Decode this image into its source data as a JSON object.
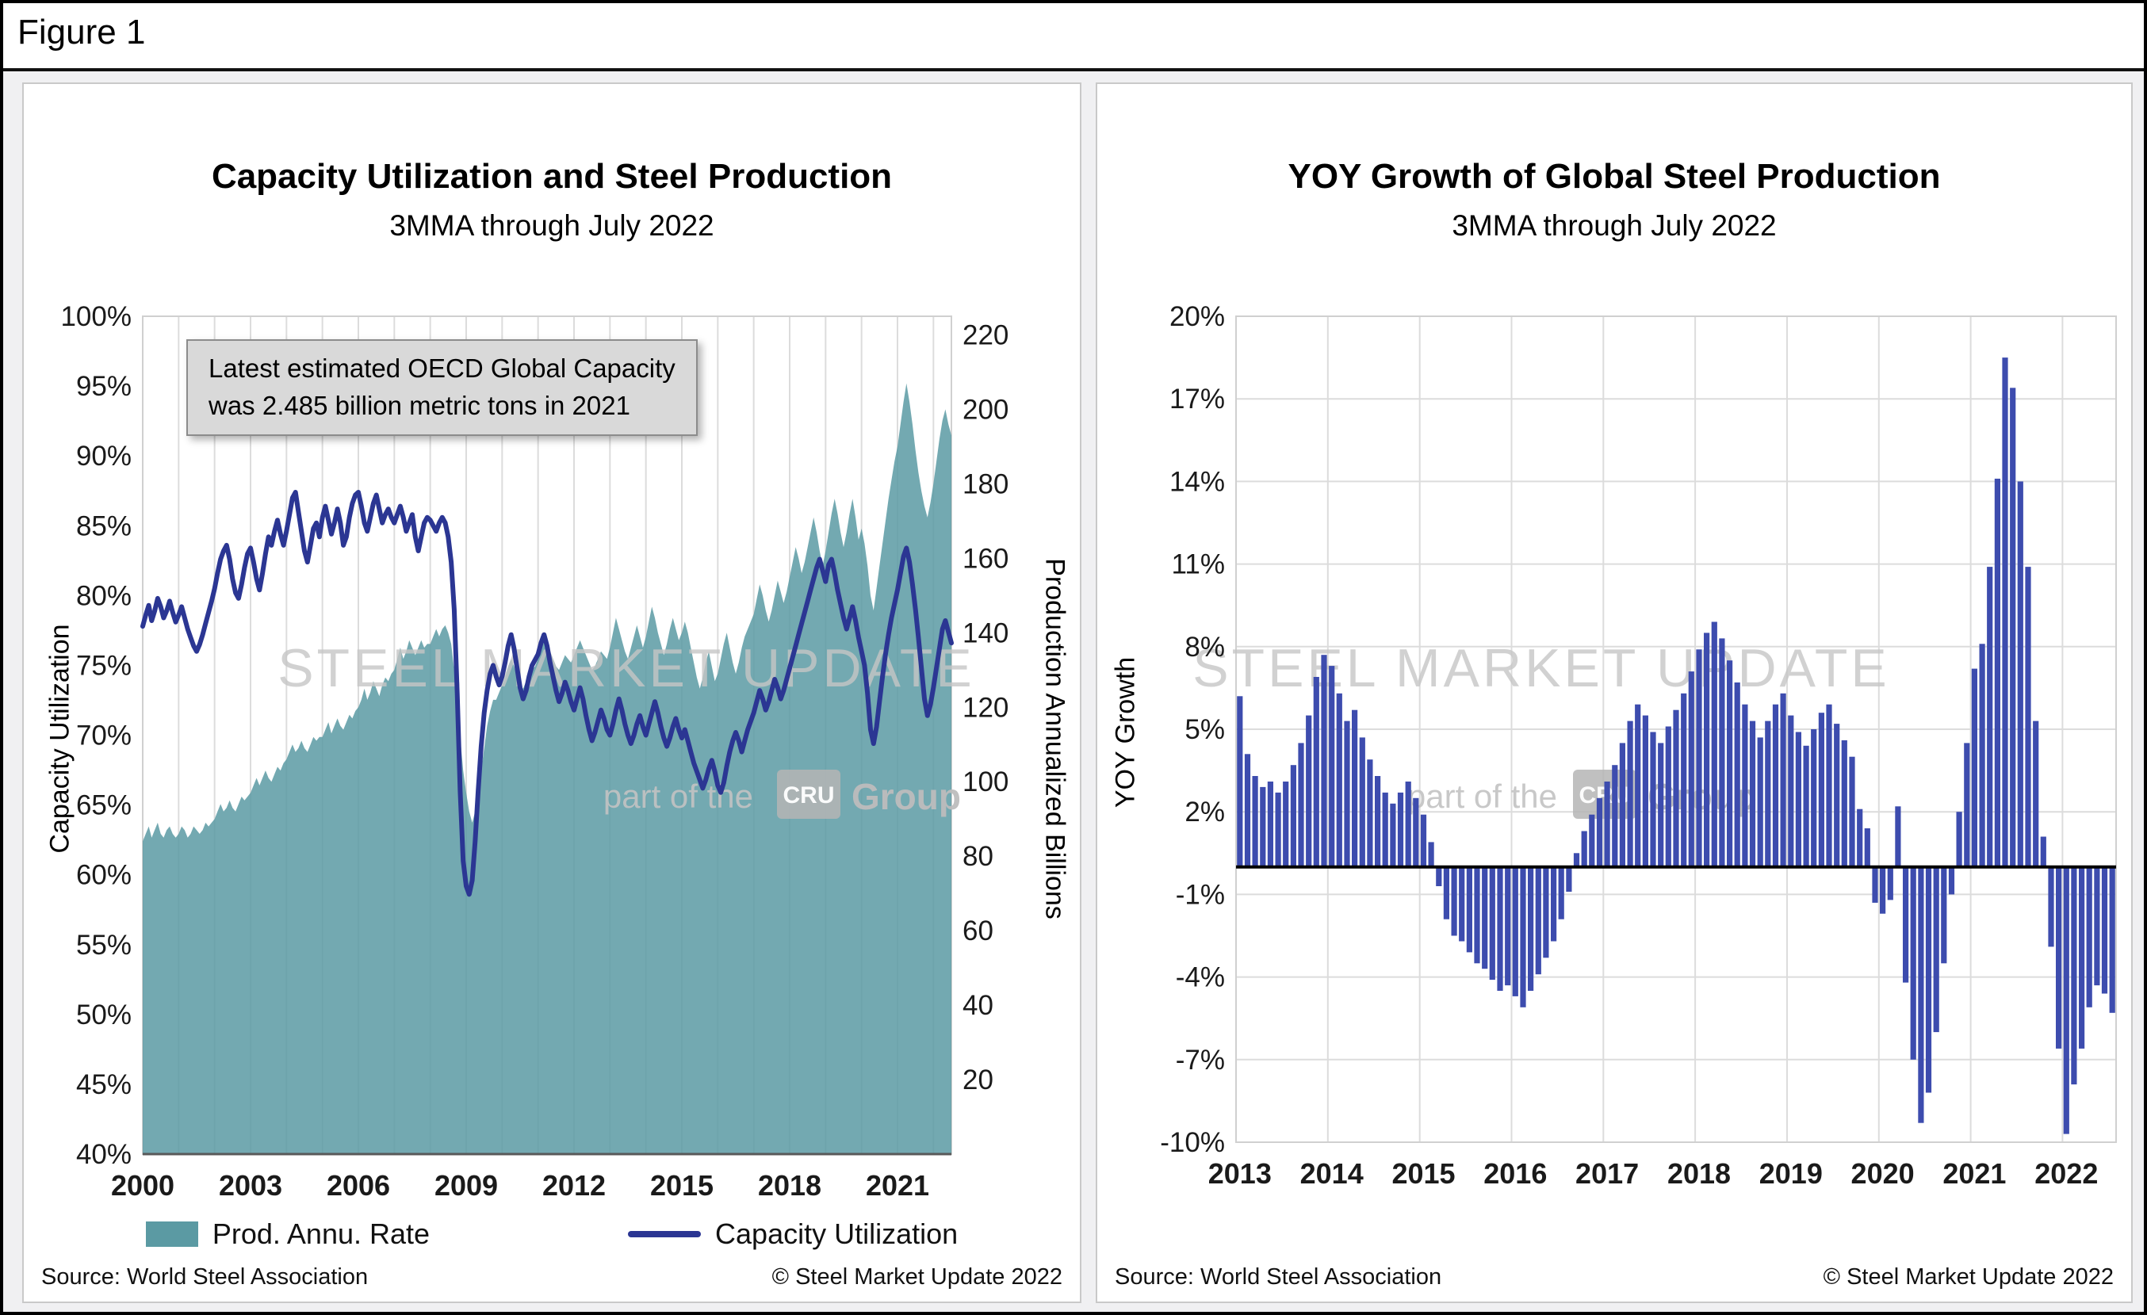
{
  "figure_label": "Figure 1",
  "colors": {
    "area": "#5b9aa3",
    "line": "#2b3693",
    "bar": "#3d4cae",
    "grid": "#dcdcdc",
    "panel_border": "#c9c9c9",
    "annotation_bg": "#d9d9d9"
  },
  "watermark": {
    "brand": "STEEL MARKET UPDATE",
    "part_of": "part of the",
    "cru": "CRU",
    "group": "Group"
  },
  "left": {
    "title": "Capacity Utilization and Steel Production",
    "subtitle": "3MMA through July 2022",
    "y_left_title": "Capacity Utilization",
    "y_right_title": "Production Annualized Billions",
    "annotation_line1": "Latest estimated OECD Global Capacity",
    "annotation_line2": "was 2.485 billion metric tons in 2021",
    "legend_area": "Prod. Annu. Rate",
    "legend_line": "Capacity Utilization",
    "source": "Source: World Steel Association",
    "copyright": "© Steel Market Update 2022"
  },
  "right": {
    "title": "YOY Growth of Global Steel Production",
    "subtitle": "3MMA through July 2022",
    "y_title": "YOY Growth",
    "source": "Source: World Steel Association",
    "copyright": "© Steel Market Update 2022"
  },
  "chart_data": [
    {
      "type": "area",
      "title": "Capacity Utilization and Steel Production",
      "subtitle": "3MMA through July 2022",
      "frequency": "monthly",
      "x_start": "2000-01",
      "x_end": "2022-07",
      "x_ticks": [
        2000,
        2003,
        2006,
        2009,
        2012,
        2015,
        2018,
        2021
      ],
      "annotation": "Latest estimated OECD Global Capacity was 2.485 billion metric tons in 2021",
      "y_left": {
        "label": "Capacity Utilization",
        "min": 40,
        "max": 100,
        "unit": "%",
        "ticks": [
          100,
          95,
          90,
          85,
          80,
          75,
          70,
          65,
          60,
          55,
          50,
          45,
          40
        ],
        "tick_labels": [
          "100%",
          "95%",
          "90%",
          "85%",
          "80%",
          "75%",
          "70%",
          "65%",
          "60%",
          "55%",
          "50%",
          "45%",
          "40%"
        ]
      },
      "y_right": {
        "label": "Production Annualized Billions",
        "min": 0,
        "max": 225,
        "ticks": [
          220,
          200,
          180,
          160,
          140,
          120,
          100,
          80,
          60,
          40,
          20
        ],
        "tick_labels": [
          "220",
          "200",
          "180",
          "160",
          "140",
          "120",
          "100",
          "80",
          "60",
          "40",
          "20"
        ]
      },
      "series": [
        {
          "name": "Prod. Annu. Rate",
          "type": "area",
          "axis": "right",
          "color": "#5b9aa3",
          "values": [
            84,
            86,
            88,
            85,
            87,
            89,
            86,
            85,
            87,
            88,
            86,
            85,
            86,
            88,
            87,
            85,
            86,
            88,
            87,
            86,
            87,
            89,
            88,
            89,
            90,
            92,
            94,
            92,
            93,
            95,
            93,
            92,
            94,
            96,
            95,
            96,
            97,
            99,
            101,
            99,
            101,
            103,
            101,
            100,
            102,
            104,
            103,
            105,
            106,
            108,
            110,
            108,
            109,
            111,
            109,
            108,
            110,
            112,
            111,
            112,
            112,
            114,
            116,
            113,
            115,
            117,
            115,
            114,
            116,
            118,
            117,
            119,
            120,
            122,
            125,
            122,
            124,
            127,
            125,
            123,
            126,
            128,
            127,
            129,
            130,
            133,
            136,
            133,
            135,
            138,
            136,
            134,
            136,
            138,
            136,
            137,
            137,
            139,
            141,
            139,
            141,
            142,
            140,
            137,
            130,
            121,
            112,
            103,
            97,
            92,
            89,
            92,
            97,
            103,
            109,
            115,
            119,
            122,
            122,
            124,
            126,
            128,
            131,
            133,
            131,
            128,
            126,
            125,
            127,
            129,
            130,
            131,
            133,
            136,
            139,
            137,
            135,
            133,
            131,
            130,
            132,
            134,
            133,
            132,
            134,
            136,
            138,
            136,
            134,
            132,
            130,
            131,
            133,
            135,
            134,
            133,
            136,
            140,
            144,
            141,
            138,
            135,
            133,
            136,
            139,
            142,
            139,
            136,
            139,
            143,
            147,
            144,
            140,
            137,
            134,
            137,
            141,
            144,
            141,
            138,
            140,
            143,
            140,
            136,
            132,
            128,
            125,
            128,
            132,
            135,
            131,
            127,
            129,
            133,
            137,
            140,
            136,
            132,
            129,
            132,
            136,
            139,
            141,
            143,
            145,
            149,
            153,
            150,
            146,
            143,
            146,
            150,
            154,
            151,
            148,
            151,
            155,
            159,
            163,
            160,
            156,
            159,
            163,
            167,
            171,
            167,
            162,
            158,
            162,
            167,
            172,
            176,
            172,
            167,
            163,
            167,
            172,
            176,
            171,
            165,
            168,
            164,
            158,
            150,
            146,
            152,
            158,
            164,
            170,
            176,
            181,
            186,
            190,
            196,
            202,
            207,
            202,
            196,
            189,
            183,
            178,
            174,
            171,
            175,
            180,
            186,
            192,
            197,
            200,
            196,
            193
          ]
        },
        {
          "name": "Capacity Utilization",
          "type": "line",
          "axis": "left",
          "color": "#2b3693",
          "values": [
            77.8,
            78.6,
            79.3,
            78.2,
            78.9,
            79.8,
            79.2,
            78.4,
            78.9,
            79.6,
            78.8,
            78.1,
            78.6,
            79.2,
            78.4,
            77.6,
            77,
            76.4,
            76,
            76.5,
            77.2,
            78,
            78.8,
            79.6,
            80.5,
            81.6,
            82.6,
            83.2,
            83.6,
            82.6,
            81.2,
            80.2,
            79.8,
            80.8,
            82,
            83,
            83.4,
            82.4,
            81.2,
            80.4,
            81.6,
            83,
            84.2,
            83.6,
            84.6,
            85.4,
            84.4,
            83.6,
            84.6,
            85.8,
            87,
            87.4,
            86,
            84.6,
            83.2,
            82.4,
            83.6,
            84.8,
            85.2,
            84.2,
            85.6,
            86.4,
            85.4,
            84.4,
            85.2,
            86.2,
            85.2,
            83.6,
            84.2,
            85.6,
            86.6,
            87.2,
            87.4,
            86.4,
            85.2,
            84.6,
            85.6,
            86.6,
            87.2,
            86.2,
            85.2,
            85.8,
            86.2,
            85.6,
            85.2,
            85.8,
            86.4,
            85.6,
            84.6,
            85.2,
            85.8,
            84.2,
            83.2,
            84.2,
            85.2,
            85.6,
            85.4,
            85,
            84.6,
            85.2,
            85.6,
            85.2,
            84.2,
            82.4,
            79,
            73,
            66,
            61,
            59.2,
            58.6,
            59.6,
            62.4,
            66,
            69.2,
            71.6,
            73.2,
            74.4,
            75,
            74.2,
            73.6,
            74.2,
            75.2,
            76.4,
            77.2,
            76.2,
            74.8,
            73.4,
            72.6,
            73.2,
            74.2,
            75,
            75.4,
            75.8,
            76.6,
            77.2,
            76.4,
            75.2,
            74.2,
            73.2,
            72.4,
            73,
            73.8,
            73.2,
            72.4,
            71.8,
            72.6,
            73.4,
            72.6,
            71.4,
            70.4,
            69.6,
            70.2,
            71,
            71.8,
            71.2,
            70.4,
            70,
            70.8,
            71.8,
            72.6,
            71.8,
            70.8,
            70,
            69.4,
            70,
            70.8,
            71.4,
            70.6,
            70,
            70.8,
            71.6,
            72.4,
            71.6,
            70.6,
            69.8,
            69.2,
            69.8,
            70.6,
            71.2,
            70.4,
            69.8,
            70.4,
            69.6,
            68.8,
            68,
            67.4,
            66.8,
            66.2,
            66.8,
            67.6,
            68.2,
            67.4,
            66.4,
            65.9,
            66.6,
            67.8,
            68.8,
            69.6,
            70.2,
            69.6,
            68.8,
            69.6,
            70.4,
            71,
            71.6,
            72.4,
            73.2,
            72.6,
            71.8,
            72.4,
            73.2,
            74,
            73.4,
            72.6,
            73.2,
            74,
            74.8,
            75.6,
            76.4,
            77.2,
            78,
            78.8,
            79.6,
            80.4,
            81.2,
            82,
            82.6,
            81.8,
            81,
            82.2,
            82.6,
            81.6,
            80.4,
            79.4,
            78.4,
            77.6,
            78.4,
            79.2,
            78.2,
            77,
            76,
            75,
            73,
            70.4,
            69.4,
            70.6,
            72.4,
            74.2,
            75.8,
            77.2,
            78.4,
            79.4,
            80.4,
            81.6,
            82.8,
            83.4,
            82.4,
            80.8,
            79,
            77,
            74.8,
            72.6,
            71.4,
            72.2,
            73.4,
            74.8,
            76.2,
            77.6,
            78.2,
            77.4,
            76.6
          ]
        }
      ],
      "source": "Source: World Steel Association",
      "copyright": "© Steel Market Update 2022"
    },
    {
      "type": "bar",
      "title": "YOY Growth of Global Steel Production",
      "subtitle": "3MMA through July 2022",
      "frequency": "monthly",
      "x_start": "2013-01",
      "x_end": "2022-07",
      "x_ticks": [
        2013,
        2014,
        2015,
        2016,
        2017,
        2018,
        2019,
        2020,
        2021,
        2022
      ],
      "ylabel": "YOY Growth",
      "ylim": [
        -10,
        20
      ],
      "bar_color": "#3d4cae",
      "y_ticks": [
        20,
        17,
        14,
        11,
        8,
        5,
        2,
        -1,
        -4,
        -7,
        -10
      ],
      "y_tick_labels": [
        "20%",
        "17%",
        "14%",
        "11%",
        "8%",
        "5%",
        "2%",
        "-1%",
        "-4%",
        "-7%",
        "-10%"
      ],
      "values": [
        6.2,
        4.1,
        3.3,
        2.9,
        3.1,
        2.7,
        3.1,
        3.7,
        4.5,
        5.5,
        6.9,
        7.7,
        7.3,
        6.3,
        5.3,
        5.7,
        4.7,
        3.9,
        3.3,
        2.7,
        2.3,
        2.7,
        3.1,
        2.5,
        1.9,
        0.9,
        -0.7,
        -1.9,
        -2.5,
        -2.7,
        -3.1,
        -3.5,
        -3.7,
        -4.1,
        -4.5,
        -4.3,
        -4.7,
        -5.1,
        -4.5,
        -3.9,
        -3.3,
        -2.7,
        -1.9,
        -0.9,
        0.5,
        1.3,
        1.9,
        2.5,
        3.1,
        3.7,
        4.5,
        5.3,
        5.9,
        5.5,
        4.9,
        4.5,
        5.1,
        5.7,
        6.3,
        7.1,
        7.9,
        8.5,
        8.9,
        8.3,
        7.5,
        6.7,
        5.9,
        5.3,
        4.7,
        5.3,
        5.9,
        6.3,
        5.5,
        4.9,
        4.4,
        5,
        5.6,
        5.9,
        5.2,
        4.6,
        4,
        2.1,
        1.4,
        -1.3,
        -1.7,
        -1.2,
        2.2,
        -4.2,
        -7,
        -9.3,
        -8.2,
        -6,
        -3.5,
        -1,
        2,
        4.5,
        7.2,
        8.1,
        10.9,
        14.1,
        18.5,
        17.4,
        14,
        10.9,
        5.3,
        1.1,
        -2.9,
        -6.6,
        -9.7,
        -7.9,
        -6.6,
        -5.1,
        -4.3,
        -4.6,
        -5.3
      ],
      "source": "Source: World Steel Association",
      "copyright": "© Steel Market Update 2022"
    }
  ]
}
